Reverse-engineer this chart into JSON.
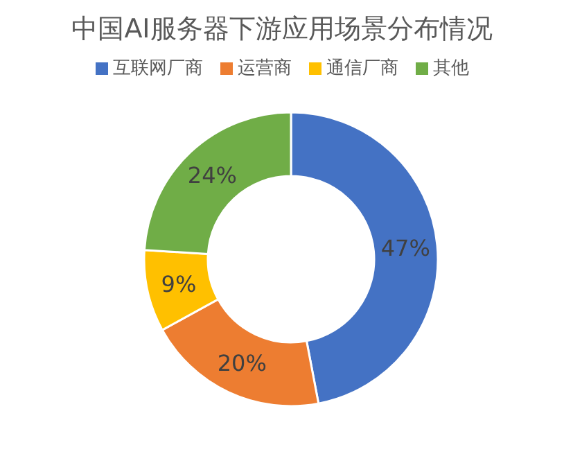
{
  "chart_data": {
    "type": "donut",
    "title": "中国AI服务器下游应用场景分布情况",
    "categories": [
      "互联网厂商",
      "运营商",
      "通信厂商",
      "其他"
    ],
    "values": [
      47,
      20,
      9,
      24
    ],
    "colors": [
      "#4472c4",
      "#ed7d31",
      "#ffc000",
      "#70ad47"
    ],
    "value_labels": [
      "47%",
      "20%",
      "9%",
      "24%"
    ],
    "legend": "top"
  }
}
